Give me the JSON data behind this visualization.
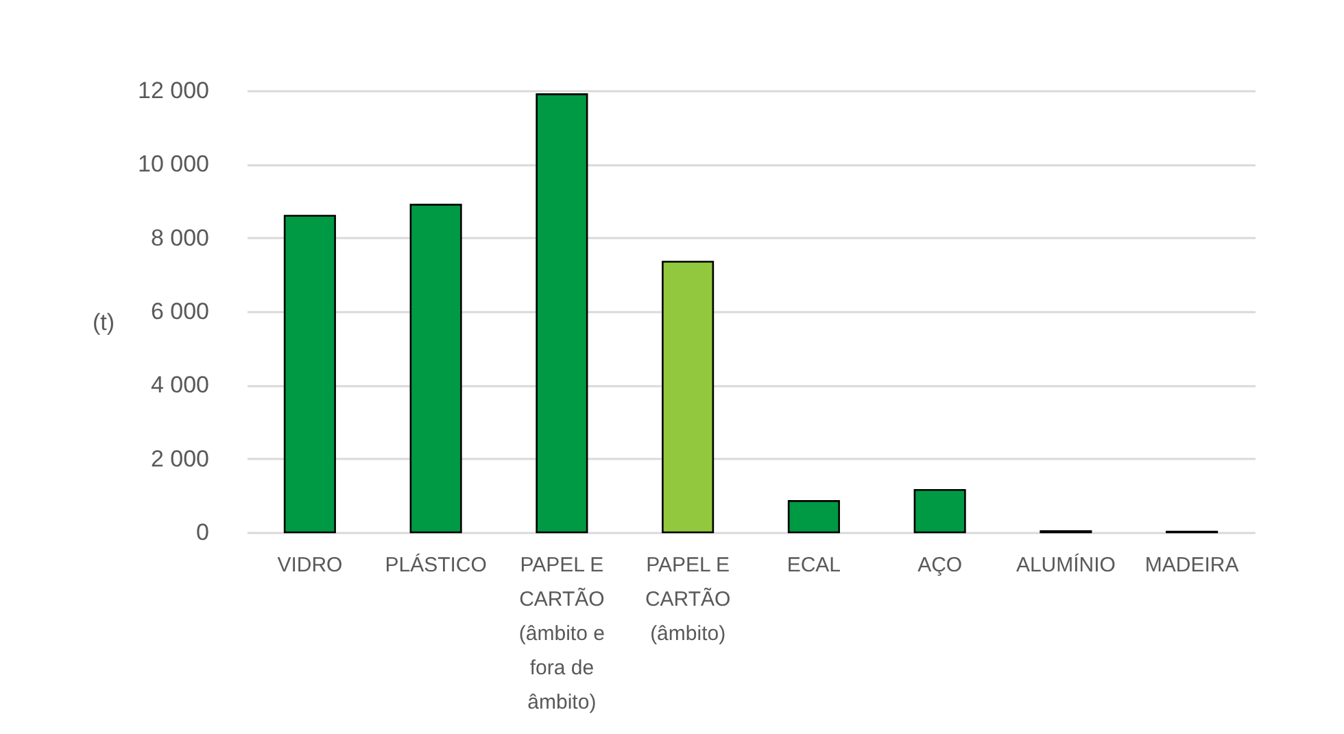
{
  "chart_data": {
    "type": "bar",
    "ylabel": "(t)",
    "categories": [
      "VIDRO",
      "PLÁSTICO",
      "PAPEL E CARTÃO (âmbito e fora de âmbito)",
      "PAPEL E CARTÃO (âmbito)",
      "ECAL",
      "AÇO",
      "ALUMÍNIO",
      "MADEIRA"
    ],
    "values": [
      8600,
      8900,
      11900,
      7350,
      850,
      1150,
      30,
      20
    ],
    "colors": [
      "#009944",
      "#009944",
      "#009944",
      "#92c83e",
      "#009944",
      "#009944",
      "#009944",
      "#009944"
    ],
    "ylim": [
      0,
      12000
    ],
    "yticks": [
      0,
      {
        "value": 2000,
        "label": "2 000"
      },
      {
        "value": 4000,
        "label": "4 000"
      },
      {
        "value": 6000,
        "label": "6 000"
      },
      {
        "value": 8000,
        "label": "8 000"
      },
      {
        "value": 10000,
        "label": "10 000"
      },
      {
        "value": 12000,
        "label": "12 000"
      }
    ],
    "grid": "y"
  }
}
